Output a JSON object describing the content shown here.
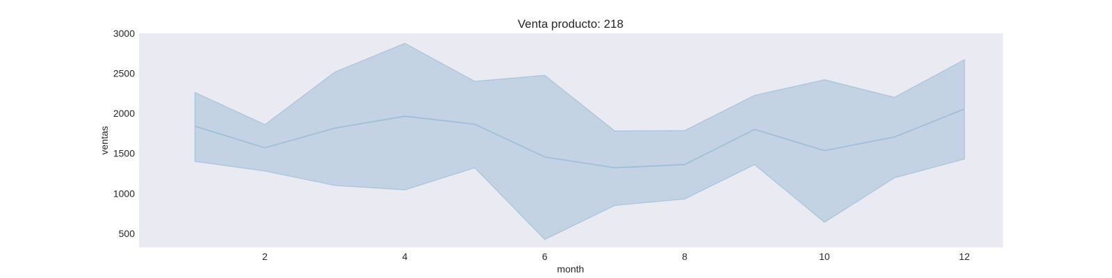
{
  "chart_data": {
    "type": "line",
    "title": "Venta producto: 218",
    "xlabel": "month",
    "ylabel": "ventas",
    "x": [
      1,
      2,
      3,
      4,
      5,
      6,
      7,
      8,
      9,
      10,
      11,
      12
    ],
    "series": [
      {
        "values": [
          1840,
          1570,
          1815,
          1965,
          1865,
          1455,
          1320,
          1360,
          1800,
          1535,
          1705,
          2055
        ],
        "lower": [
          1400,
          1280,
          1100,
          1045,
          1320,
          425,
          850,
          930,
          1360,
          640,
          1195,
          1430
        ],
        "upper": [
          2260,
          1860,
          2515,
          2875,
          2400,
          2475,
          1780,
          1785,
          2225,
          2420,
          2200,
          2670
        ]
      }
    ],
    "xlim": [
      0.2,
      12.55
    ],
    "ylim": [
      325,
      3000
    ],
    "xticks": [
      2,
      4,
      6,
      8,
      10,
      12
    ],
    "yticks": [
      500,
      1000,
      1500,
      2000,
      2500,
      3000
    ],
    "grid": false,
    "colors": {
      "line": "#9ebfd9",
      "band": "#c3d3e4",
      "band_edge": "#a6c3dc",
      "plot_background": "#eaeaf2",
      "text": "#262626"
    }
  }
}
